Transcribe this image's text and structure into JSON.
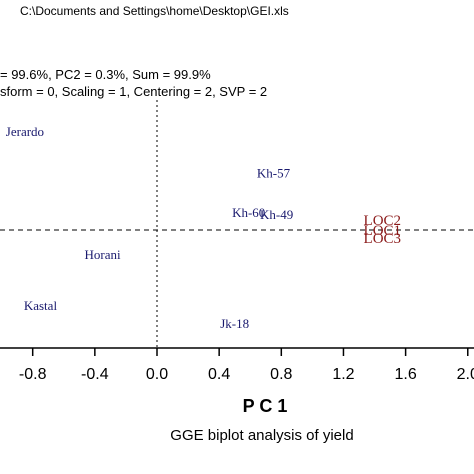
{
  "file_path": "C:\\Documents and Settings\\home\\Desktop\\GEI.xls",
  "stats_line": "= 99.6%, PC2 = 0.3%, Sum = 99.9%",
  "settings_line": "sform = 0, Scaling = 1, Centering = 2, SVP = 2",
  "colors": {
    "genotype": "#1a1a6e",
    "environment": "#8b1a1a",
    "axis": "#000000",
    "text": "#000000"
  },
  "chart_data": {
    "type": "scatter",
    "title": "",
    "caption": "GGE biplot analysis of yield",
    "xlabel": "P C 1",
    "ylabel": "",
    "xlim": [
      -1.0,
      2.05
    ],
    "ylim": [
      -0.68,
      0.64
    ],
    "xticks": [
      -0.8,
      -0.4,
      0.0,
      0.4,
      0.8,
      1.2,
      1.6,
      2.0
    ],
    "xtick_labels": [
      "-0.8",
      "-0.4",
      "0.0",
      "0.4",
      "0.8",
      "1.2",
      "1.6",
      "2.0"
    ],
    "reference_lines": {
      "vertical_x": 0.0,
      "horizontal_y": 0.0
    },
    "series": [
      {
        "name": "",
        "points": [
          {
            "label": "Jerardo",
            "x": -0.85,
            "y": 0.5
          },
          {
            "label": "Kh-57",
            "x": 0.75,
            "y": 0.29
          },
          {
            "label": "Kh-60",
            "x": 0.59,
            "y": 0.09
          },
          {
            "label": "Kh-49",
            "x": 0.77,
            "y": 0.08
          },
          {
            "label": "Horani",
            "x": -0.35,
            "y": -0.12
          },
          {
            "label": "Kastal",
            "x": -0.75,
            "y": -0.38
          },
          {
            "label": "Jk-18",
            "x": 0.5,
            "y": -0.47
          }
        ]
      },
      {
        "name": "",
        "points": [
          {
            "label": "LOC2",
            "x": 1.45,
            "y": 0.05
          },
          {
            "label": "LOC1",
            "x": 1.45,
            "y": 0.0
          },
          {
            "label": "LOC3",
            "x": 1.45,
            "y": -0.04
          }
        ]
      }
    ]
  }
}
